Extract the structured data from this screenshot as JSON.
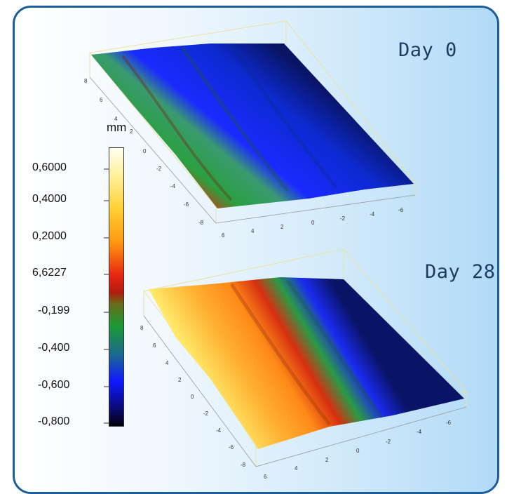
{
  "labels": {
    "top_plot": "Day 0",
    "bottom_plot": "Day 28",
    "unit": "mm"
  },
  "colorbar": {
    "ticks": [
      "0,6000",
      "0,4000",
      "0,2000",
      "6,6227",
      "-0,199",
      "-0,400",
      "-0,600",
      "-0,800"
    ],
    "colors": [
      "#fffff2",
      "#ffd035",
      "#ff9710",
      "#e62512",
      "#1c9a35",
      "#0f18ff",
      "#0a0a70",
      "#02020c"
    ]
  },
  "plots": [
    {
      "name": "Day 0",
      "axis_left": [
        "8",
        "6",
        "4",
        "2",
        "0",
        "-2",
        "-4",
        "-6",
        "-8"
      ],
      "axis_bottom": [
        "6",
        "4",
        "2",
        "0",
        "-2",
        "-4",
        "-6"
      ]
    },
    {
      "name": "Day 28",
      "axis_left": [
        "8",
        "6",
        "4",
        "2",
        "0",
        "-2",
        "-4",
        "-6",
        "-8"
      ],
      "axis_bottom": [
        "6",
        "4",
        "2",
        "0",
        "-2",
        "-4",
        "-6"
      ]
    }
  ],
  "colors": {
    "border": "#1b5e9a",
    "label": "#1f3a60"
  }
}
